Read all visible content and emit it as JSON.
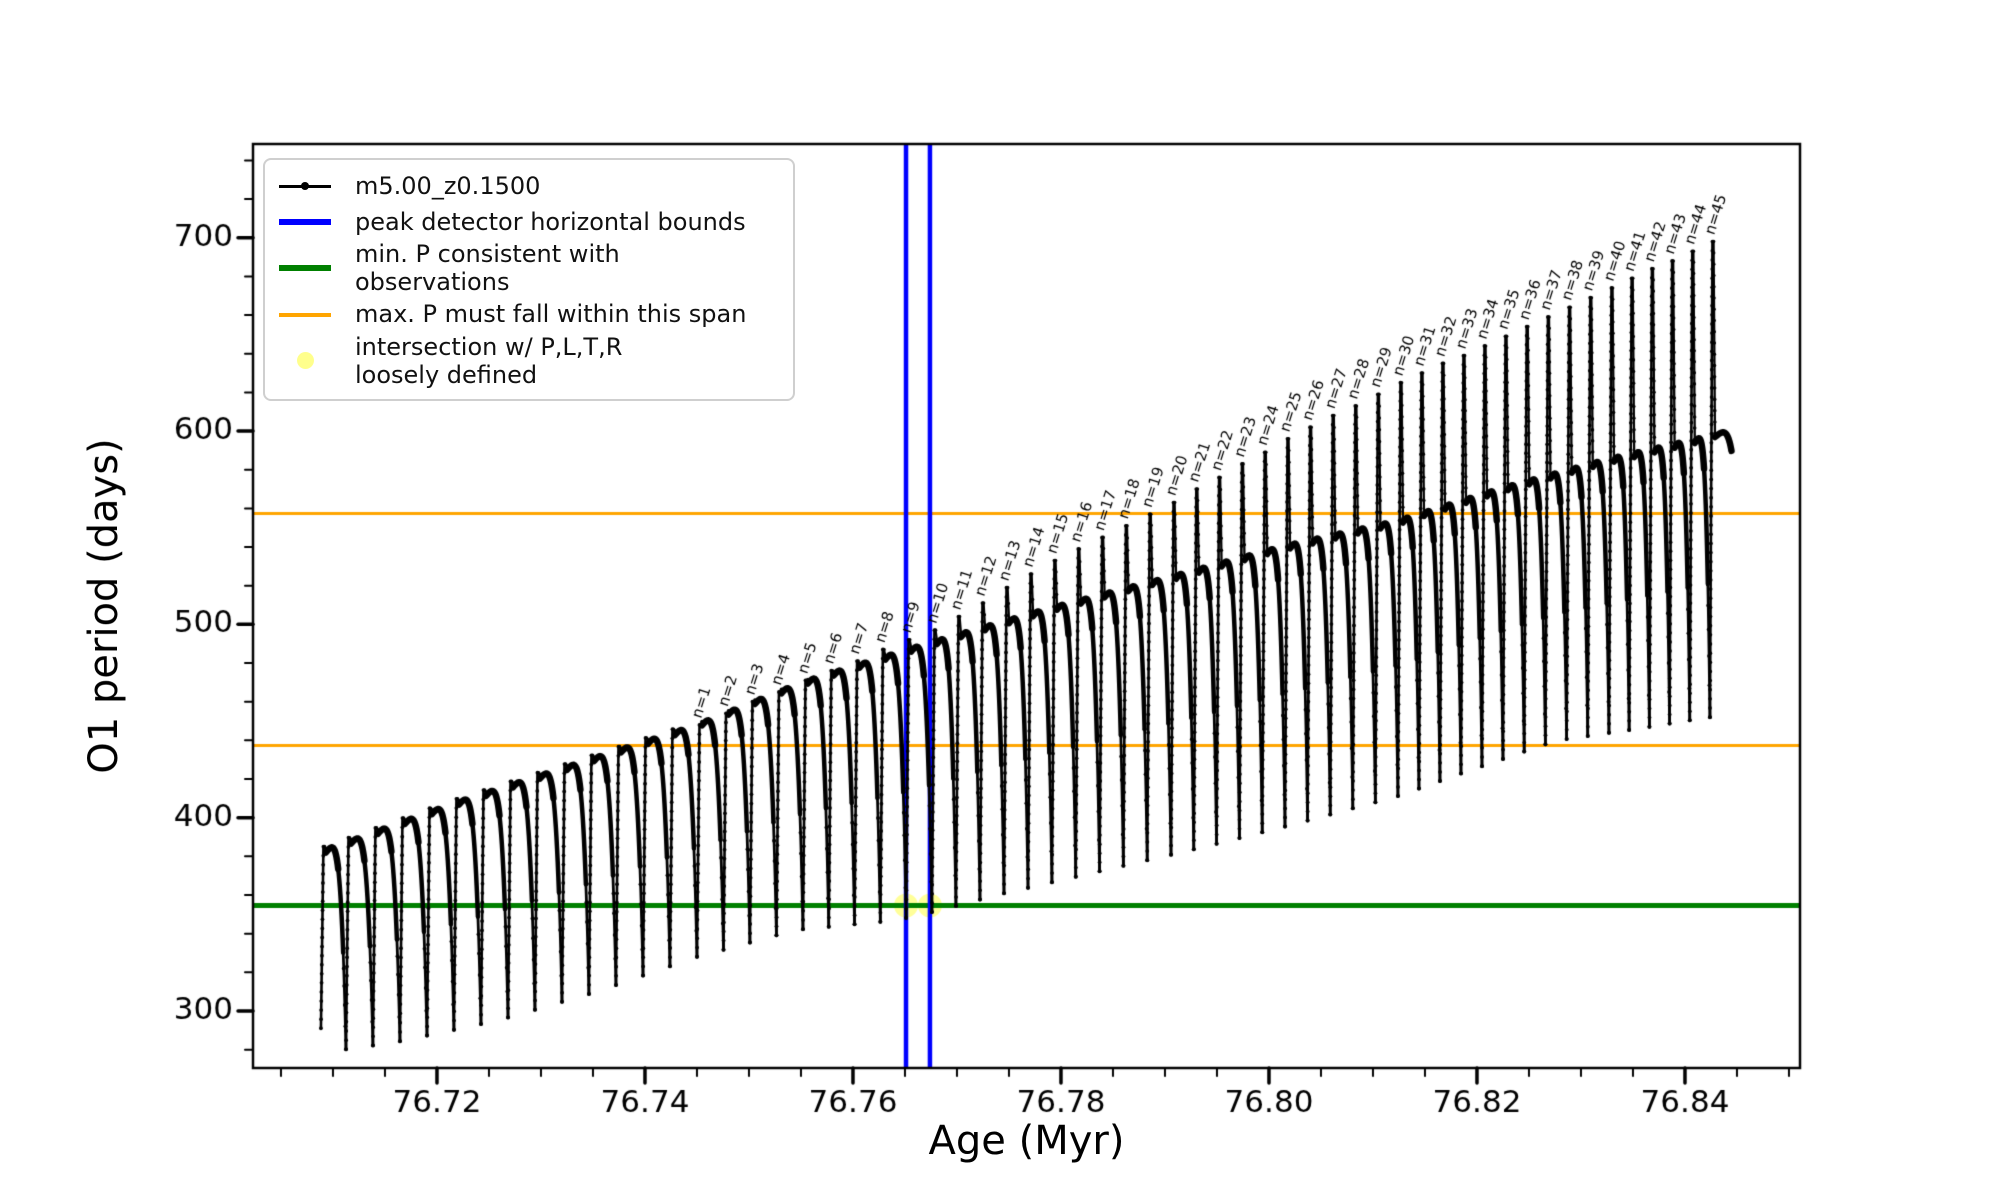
{
  "chart_data": {
    "type": "line",
    "title": "",
    "xlabel": "Age (Myr)",
    "ylabel": "O1 period (days)",
    "xlim": [
      76.70231,
      76.85106
    ],
    "ylim": [
      270.5,
      748.5
    ],
    "x_major_ticks": [
      76.72,
      76.74,
      76.76,
      76.78,
      76.8,
      76.82,
      76.84
    ],
    "x_major_labels": [
      "76.72",
      "76.74",
      "76.76",
      "76.78",
      "76.80",
      "76.82",
      "76.84"
    ],
    "x_minor_step": 0.005,
    "y_major_ticks": [
      300,
      400,
      500,
      600,
      700
    ],
    "y_minor_step": 20,
    "grid": false,
    "series_label": "m5.00_z0.1500",
    "hline_min_p": 354.6,
    "hlines_max_p_span": [
      437.3,
      557.4
    ],
    "vlines_peak_detector": [
      76.7651,
      76.7674
    ],
    "intersection_markers": [
      [
        76.7651,
        354.6
      ],
      [
        76.7674,
        354.6
      ]
    ],
    "colors": {
      "series": "#000000",
      "peak_detector": "#0000ff",
      "min_p": "#008000",
      "max_p": "#ffa500",
      "intersection": "rgba(255,255,0,0.4)"
    },
    "oscillation": {
      "unlabeled_cycles_x": [
        76.70913,
        76.71154,
        76.71413,
        76.71673,
        76.71933,
        76.72192,
        76.72452,
        76.72712,
        76.72971,
        76.73231,
        76.7349,
        76.7375,
        76.7401,
        76.74269
      ],
      "labeled_peaks": [
        {
          "n": 1,
          "x": 76.74529,
          "peak": 448
        },
        {
          "n": 2,
          "x": 76.74784,
          "peak": 454
        },
        {
          "n": 3,
          "x": 76.75038,
          "peak": 460
        },
        {
          "n": 4,
          "x": 76.75293,
          "peak": 465
        },
        {
          "n": 5,
          "x": 76.75548,
          "peak": 471
        },
        {
          "n": 6,
          "x": 76.75796,
          "peak": 476
        },
        {
          "n": 7,
          "x": 76.76044,
          "peak": 481
        },
        {
          "n": 8,
          "x": 76.76292,
          "peak": 487
        },
        {
          "n": 9,
          "x": 76.7654,
          "peak": 492
        },
        {
          "n": 10,
          "x": 76.76788,
          "peak": 497
        },
        {
          "n": 11,
          "x": 76.77019,
          "peak": 504
        },
        {
          "n": 12,
          "x": 76.7725,
          "peak": 511
        },
        {
          "n": 13,
          "x": 76.77481,
          "peak": 519
        },
        {
          "n": 14,
          "x": 76.77712,
          "peak": 526
        },
        {
          "n": 15,
          "x": 76.77942,
          "peak": 533
        },
        {
          "n": 16,
          "x": 76.78171,
          "peak": 539
        },
        {
          "n": 17,
          "x": 76.784,
          "peak": 545
        },
        {
          "n": 18,
          "x": 76.78629,
          "peak": 551
        },
        {
          "n": 19,
          "x": 76.78858,
          "peak": 557
        },
        {
          "n": 20,
          "x": 76.79087,
          "peak": 563
        },
        {
          "n": 21,
          "x": 76.79306,
          "peak": 570
        },
        {
          "n": 22,
          "x": 76.79525,
          "peak": 576
        },
        {
          "n": 23,
          "x": 76.79745,
          "peak": 583
        },
        {
          "n": 24,
          "x": 76.79964,
          "peak": 589
        },
        {
          "n": 25,
          "x": 76.80183,
          "peak": 596
        },
        {
          "n": 26,
          "x": 76.804,
          "peak": 602
        },
        {
          "n": 27,
          "x": 76.80618,
          "peak": 608
        },
        {
          "n": 28,
          "x": 76.80835,
          "peak": 613
        },
        {
          "n": 29,
          "x": 76.81052,
          "peak": 619
        },
        {
          "n": 30,
          "x": 76.81269,
          "peak": 625
        },
        {
          "n": 31,
          "x": 76.81471,
          "peak": 630
        },
        {
          "n": 32,
          "x": 76.81673,
          "peak": 635
        },
        {
          "n": 33,
          "x": 76.81875,
          "peak": 639
        },
        {
          "n": 34,
          "x": 76.82077,
          "peak": 644
        },
        {
          "n": 35,
          "x": 76.82279,
          "peak": 649
        },
        {
          "n": 36,
          "x": 76.82483,
          "peak": 654
        },
        {
          "n": 37,
          "x": 76.82687,
          "peak": 659
        },
        {
          "n": 38,
          "x": 76.82891,
          "peak": 664
        },
        {
          "n": 39,
          "x": 76.83094,
          "peak": 669
        },
        {
          "n": 40,
          "x": 76.83298,
          "peak": 674
        },
        {
          "n": 41,
          "x": 76.83492,
          "peak": 679
        },
        {
          "n": 42,
          "x": 76.83687,
          "peak": 684
        },
        {
          "n": 43,
          "x": 76.83881,
          "peak": 688
        },
        {
          "n": 44,
          "x": 76.84075,
          "peak": 693
        },
        {
          "n": 45,
          "x": 76.84269,
          "peak": 698
        }
      ],
      "end_x": 76.84606,
      "arch_envelope": [
        [
          76.71048,
          382
        ],
        [
          76.72221,
          405
        ],
        [
          76.73375,
          425
        ],
        [
          76.74529,
          445
        ],
        [
          76.75587,
          468
        ],
        [
          76.76788,
          488
        ],
        [
          76.77942,
          506
        ],
        [
          76.79087,
          522
        ],
        [
          76.80183,
          538
        ],
        [
          76.81269,
          551
        ],
        [
          76.82279,
          568
        ],
        [
          76.83298,
          583
        ],
        [
          76.84269,
          595
        ],
        [
          76.84625,
          599
        ]
      ],
      "valley_envelope": [
        [
          76.70894,
          292
        ],
        [
          76.71135,
          280
        ],
        [
          76.71644,
          284
        ],
        [
          76.72606,
          295
        ],
        [
          76.73567,
          310
        ],
        [
          76.74529,
          328
        ],
        [
          76.7549,
          342
        ],
        [
          76.76452,
          347
        ],
        [
          76.76933,
          353
        ],
        [
          76.77413,
          360
        ],
        [
          76.78375,
          372
        ],
        [
          76.79337,
          384
        ],
        [
          76.80298,
          397
        ],
        [
          76.8126,
          411
        ],
        [
          76.81933,
          424
        ],
        [
          76.82798,
          440
        ],
        [
          76.83567,
          446
        ],
        [
          76.84269,
          452
        ]
      ]
    }
  },
  "legend": {
    "entries": [
      {
        "label": "m5.00_z0.1500",
        "color": "#000000",
        "type": "line-marker",
        "lw": 3
      },
      {
        "label": "peak detector horizontal bounds",
        "color": "#0000ff",
        "type": "line",
        "lw": 6
      },
      {
        "label": "min. P consistent with observations",
        "color": "#008000",
        "type": "line",
        "lw": 6
      },
      {
        "label": "max. P must fall within this span",
        "color": "#ffa500",
        "type": "line",
        "lw": 4
      },
      {
        "label": "intersection w/ P,L,T,R\nloosely defined",
        "color": "rgba(255,255,0,0.45)",
        "type": "marker",
        "lw": 0
      }
    ]
  }
}
